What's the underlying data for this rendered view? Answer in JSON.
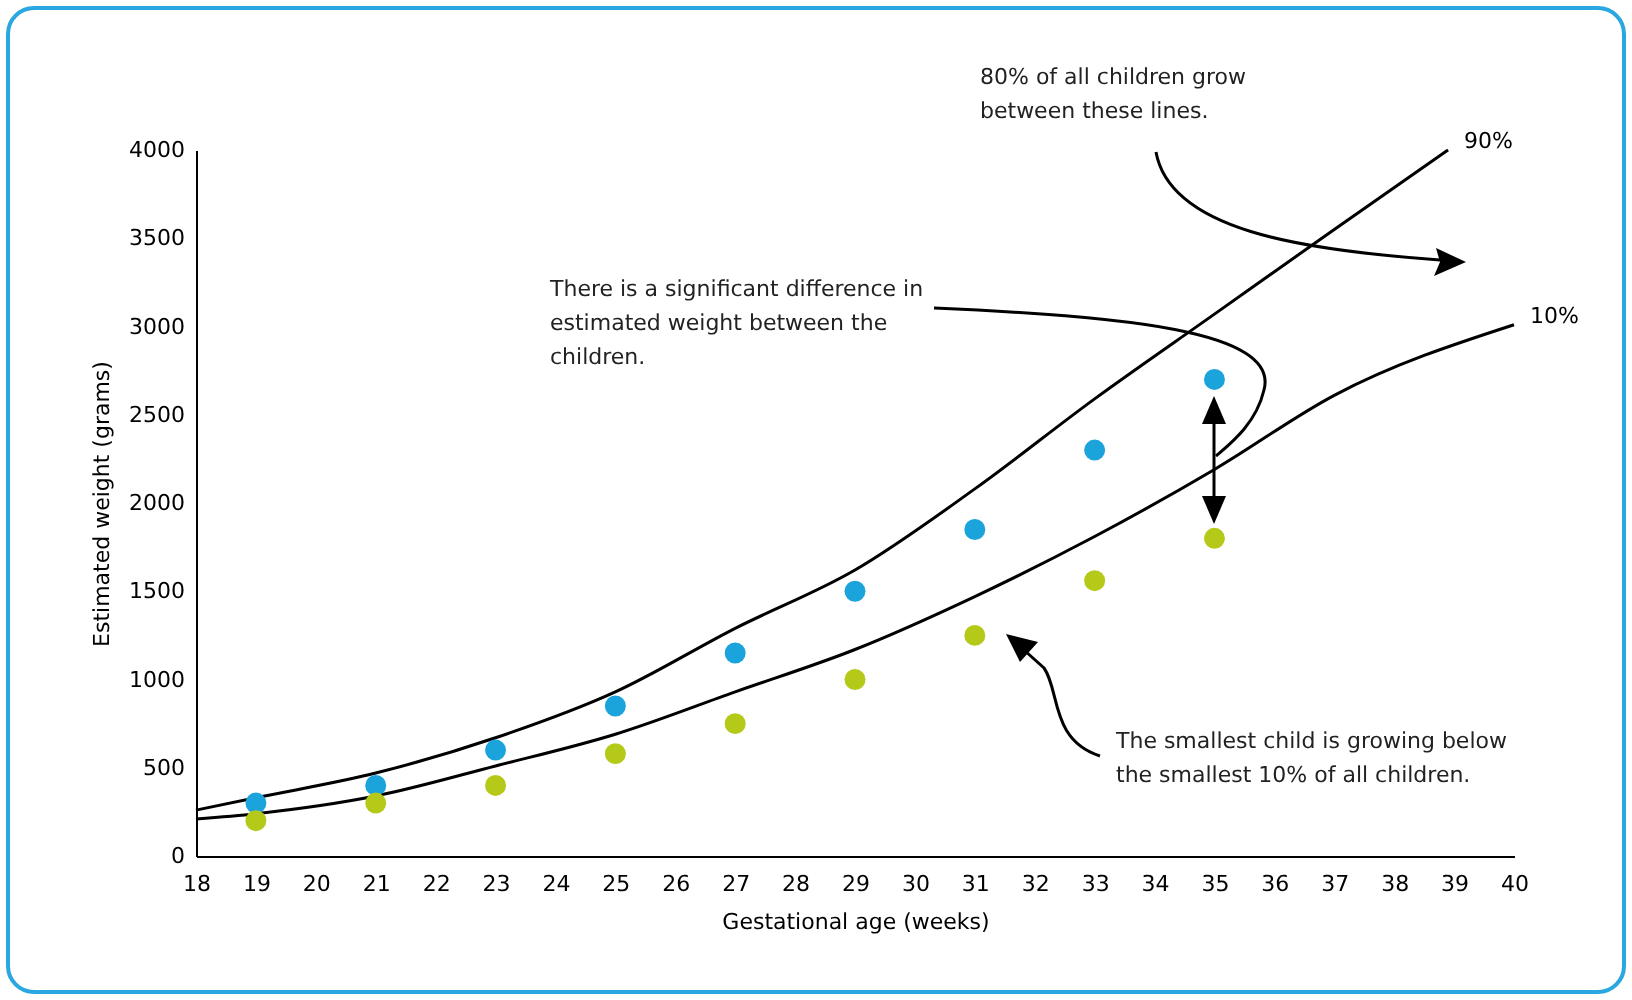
{
  "chart_data": {
    "type": "line",
    "xlabel": "Gestational age (weeks)",
    "ylabel": "Estimated weight (grams)",
    "xlim": [
      18,
      40
    ],
    "xticks": [
      18,
      19,
      20,
      21,
      22,
      23,
      24,
      25,
      26,
      27,
      28,
      29,
      30,
      31,
      32,
      33,
      34,
      35,
      36,
      37,
      38,
      39,
      40
    ],
    "ylim": [
      0,
      4000
    ],
    "yticks": [
      0,
      500,
      1000,
      1500,
      2000,
      2500,
      3000,
      3500,
      4000
    ],
    "grid": false,
    "line_style": "solid",
    "series": [
      {
        "name": "90%",
        "color": "#000000",
        "x": [
          18,
          19,
          21,
          23,
          25,
          27,
          29,
          31,
          33,
          35,
          37,
          38.9
        ],
        "values": [
          260,
          330,
          470,
          670,
          930,
          1290,
          1620,
          2080,
          2590,
          3070,
          3550,
          4000
        ]
      },
      {
        "name": "10%",
        "color": "#000000",
        "x": [
          18,
          19,
          21,
          23,
          25,
          27,
          29,
          31,
          33,
          35,
          37,
          40
        ],
        "values": [
          210,
          240,
          340,
          510,
          690,
          930,
          1170,
          1470,
          1810,
          2190,
          2610,
          3010
        ]
      },
      {
        "type": "scatter",
        "marker": "circle",
        "color": "#1ba3dc",
        "x": [
          19,
          21,
          23,
          25,
          27,
          29,
          31,
          33,
          35
        ],
        "values": [
          300,
          400,
          600,
          850,
          1150,
          1500,
          1850,
          2300,
          2700
        ]
      },
      {
        "type": "scatter",
        "marker": "circle",
        "color": "#b5c918",
        "x": [
          19,
          21,
          23,
          25,
          27,
          29,
          31,
          33,
          35
        ],
        "values": [
          200,
          300,
          400,
          580,
          750,
          1000,
          1250,
          1560,
          1800
        ]
      }
    ],
    "annotations": [
      "80% of all children grow between these lines.",
      "There is a significant difference in estimated weight between the children.",
      "The smallest child is growing below the smallest 10% of all children."
    ]
  }
}
